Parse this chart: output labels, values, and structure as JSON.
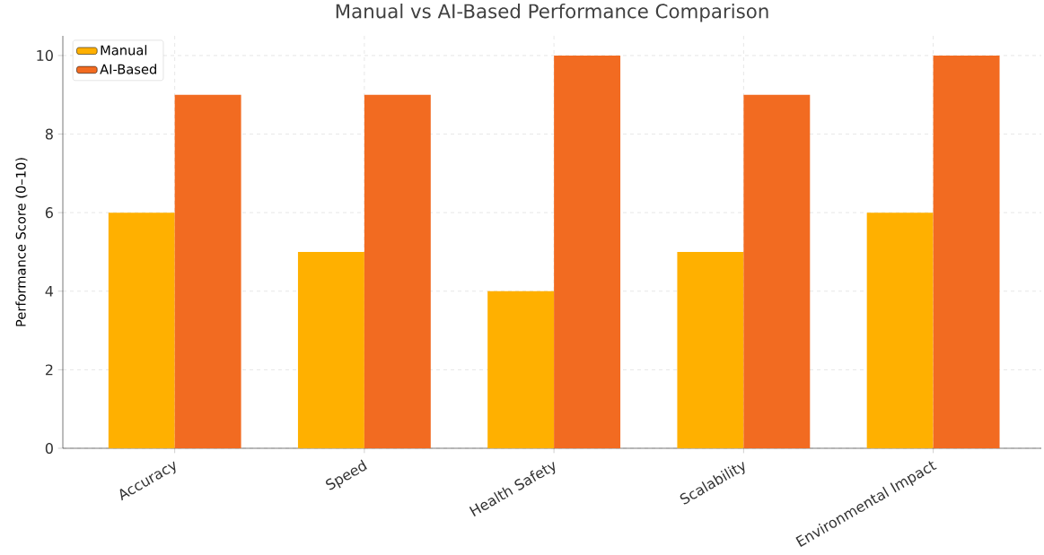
{
  "chart_data": {
    "type": "bar",
    "title": "Manual vs AI-Based Performance Comparison",
    "ylabel": "Performance Score (0–10)",
    "categories": [
      "Accuracy",
      "Speed",
      "Health Safety",
      "Scalability",
      "Environmental Impact"
    ],
    "series": [
      {
        "name": "Manual",
        "color": "#ffb000",
        "values": [
          6,
          5,
          4,
          5,
          6
        ]
      },
      {
        "name": "AI-Based",
        "color": "#f26b21",
        "values": [
          9,
          9,
          10,
          9,
          10
        ]
      }
    ],
    "ylim": [
      0,
      10.5
    ],
    "yticks": [
      0,
      2,
      4,
      6,
      8,
      10
    ],
    "grid": true,
    "legend": "top left"
  }
}
